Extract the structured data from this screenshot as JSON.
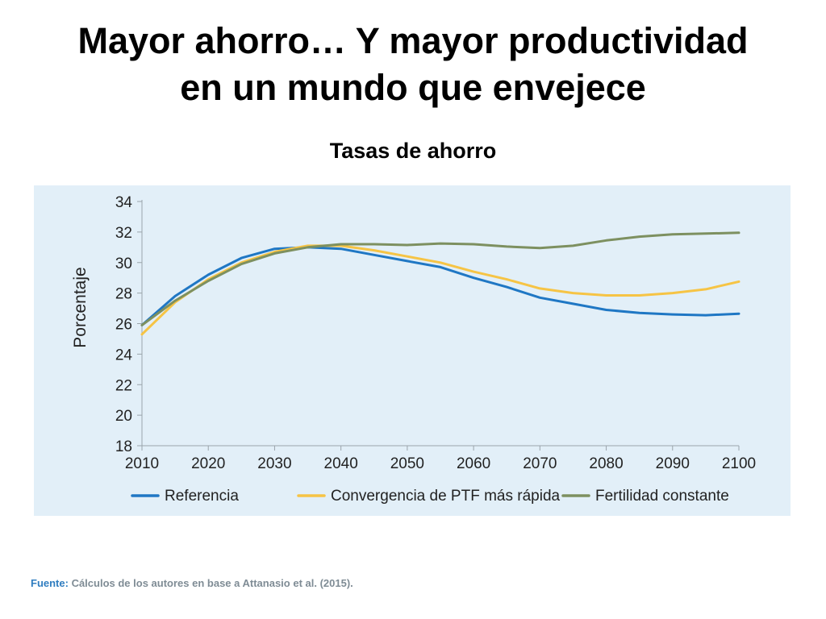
{
  "slide": {
    "title_line1": "Mayor ahorro… Y mayor productividad",
    "title_line2": "en un mundo que envejece",
    "source_label": "Fuente:",
    "source_text": " Cálculos de los autores en base a Attanasio et al. (2015)."
  },
  "chart_data": {
    "type": "line",
    "title": "Tasas de ahorro",
    "xlabel": "",
    "ylabel": "Porcentaje",
    "xlim": [
      2010,
      2100
    ],
    "ylim": [
      18,
      34
    ],
    "x_ticks": [
      2010,
      2020,
      2030,
      2040,
      2050,
      2060,
      2070,
      2080,
      2090,
      2100
    ],
    "y_ticks": [
      18,
      20,
      22,
      24,
      26,
      28,
      30,
      32,
      34
    ],
    "grid": false,
    "legend_position": "bottom",
    "x": [
      2010,
      2015,
      2020,
      2025,
      2030,
      2035,
      2040,
      2045,
      2050,
      2055,
      2060,
      2065,
      2070,
      2075,
      2080,
      2085,
      2090,
      2095,
      2100
    ],
    "series": [
      {
        "name": "Referencia",
        "color": "#1f77c4",
        "values": [
          25.9,
          27.8,
          29.2,
          30.3,
          30.9,
          31.0,
          30.9,
          30.5,
          30.1,
          29.7,
          29.0,
          28.4,
          27.7,
          27.3,
          26.9,
          26.7,
          26.6,
          26.55,
          26.65
        ]
      },
      {
        "name": "Convergencia de PTF más rápida",
        "color": "#f6c445",
        "values": [
          25.3,
          27.4,
          28.9,
          30.0,
          30.7,
          31.1,
          31.1,
          30.8,
          30.4,
          30.0,
          29.4,
          28.9,
          28.3,
          28.0,
          27.85,
          27.85,
          28.0,
          28.25,
          28.75
        ]
      },
      {
        "name": "Fertilidad constante",
        "color": "#7d9060",
        "values": [
          25.9,
          27.5,
          28.8,
          29.9,
          30.6,
          31.0,
          31.2,
          31.2,
          31.15,
          31.25,
          31.2,
          31.05,
          30.95,
          31.1,
          31.45,
          31.7,
          31.85,
          31.9,
          31.95
        ]
      }
    ]
  }
}
